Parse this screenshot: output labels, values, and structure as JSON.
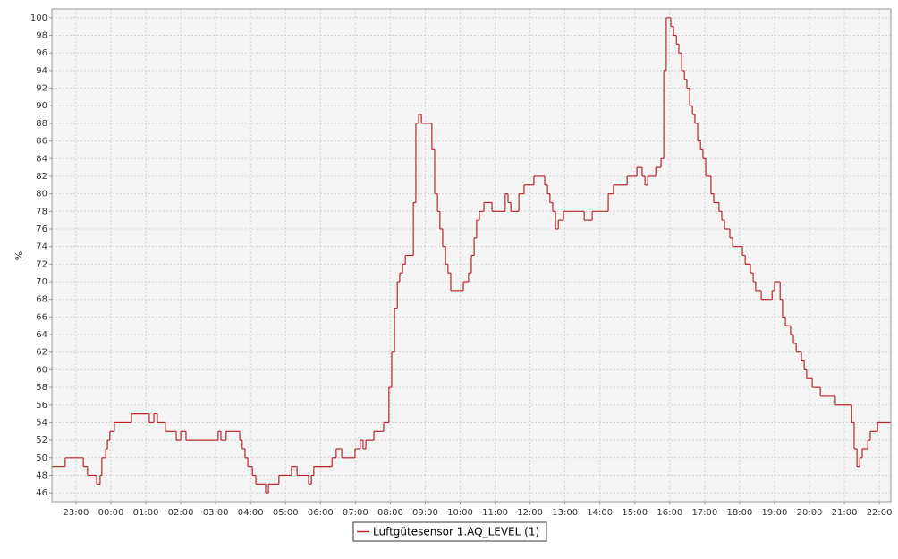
{
  "chart_data": {
    "type": "line",
    "step": "post",
    "y_label": "%",
    "grid": true,
    "xlim": [
      -1.69,
      22.33
    ],
    "ylim": [
      45,
      101
    ],
    "xticks": [
      {
        "value": -1,
        "label": "23:00"
      },
      {
        "value": 0,
        "label": "00:00"
      },
      {
        "value": 1,
        "label": "01:00"
      },
      {
        "value": 2,
        "label": "02:00"
      },
      {
        "value": 3,
        "label": "03:00"
      },
      {
        "value": 4,
        "label": "04:00"
      },
      {
        "value": 5,
        "label": "05:00"
      },
      {
        "value": 6,
        "label": "06:00"
      },
      {
        "value": 7,
        "label": "07:00"
      },
      {
        "value": 8,
        "label": "08:00"
      },
      {
        "value": 9,
        "label": "09:00"
      },
      {
        "value": 10,
        "label": "10:00"
      },
      {
        "value": 11,
        "label": "11:00"
      },
      {
        "value": 12,
        "label": "12:00"
      },
      {
        "value": 13,
        "label": "13:00"
      },
      {
        "value": 14,
        "label": "14:00"
      },
      {
        "value": 15,
        "label": "15:00"
      },
      {
        "value": 16,
        "label": "16:00"
      },
      {
        "value": 17,
        "label": "17:00"
      },
      {
        "value": 18,
        "label": "18:00"
      },
      {
        "value": 19,
        "label": "19:00"
      },
      {
        "value": 20,
        "label": "20:00"
      },
      {
        "value": 21,
        "label": "21:00"
      },
      {
        "value": 22,
        "label": "22:00"
      }
    ],
    "yticks": [
      46,
      48,
      50,
      52,
      54,
      56,
      58,
      60,
      62,
      64,
      66,
      68,
      70,
      72,
      74,
      76,
      78,
      80,
      82,
      84,
      86,
      88,
      90,
      92,
      94,
      96,
      98,
      100
    ],
    "x": [
      -1.69,
      -1.31,
      -0.79,
      -0.67,
      -0.41,
      -0.31,
      -0.26,
      -0.15,
      -0.1,
      -0.03,
      0.1,
      0.59,
      1.1,
      1.23,
      1.33,
      1.56,
      1.87,
      2.0,
      2.15,
      3.07,
      3.15,
      3.3,
      3.69,
      3.76,
      3.84,
      3.92,
      4.05,
      4.15,
      4.43,
      4.51,
      4.81,
      5.17,
      5.33,
      5.66,
      5.74,
      5.81,
      6.33,
      6.45,
      6.61,
      6.99,
      7.14,
      7.22,
      7.3,
      7.53,
      7.81,
      7.96,
      8.04,
      8.12,
      8.2,
      8.27,
      8.35,
      8.43,
      8.66,
      8.73,
      8.81,
      8.89,
      9.19,
      9.27,
      9.35,
      9.42,
      9.5,
      9.58,
      9.65,
      9.73,
      10.09,
      10.24,
      10.32,
      10.4,
      10.47,
      10.55,
      10.68,
      10.91,
      11.29,
      11.37,
      11.45,
      11.68,
      11.83,
      12.11,
      12.42,
      12.5,
      12.57,
      12.65,
      12.73,
      12.81,
      12.96,
      13.55,
      13.78,
      14.24,
      14.39,
      14.78,
      15.06,
      15.21,
      15.29,
      15.37,
      15.6,
      15.75,
      15.83,
      15.9,
      16.03,
      16.11,
      16.19,
      16.26,
      16.34,
      16.42,
      16.49,
      16.57,
      16.65,
      16.72,
      16.8,
      16.88,
      16.95,
      17.03,
      17.18,
      17.26,
      17.41,
      17.49,
      17.57,
      17.72,
      17.8,
      18.08,
      18.16,
      18.31,
      18.39,
      18.46,
      18.62,
      18.93,
      19.0,
      19.16,
      19.23,
      19.31,
      19.46,
      19.54,
      19.62,
      19.77,
      19.85,
      19.92,
      20.08,
      20.31,
      20.74,
      21.21,
      21.28,
      21.36,
      21.44,
      21.51,
      21.67,
      21.74,
      21.95,
      22.33
    ],
    "series": [
      {
        "name": "Luftgütesensor 1.AQ_LEVEL (1)",
        "color": "#b8262b",
        "values": [
          49,
          50,
          49,
          48,
          47,
          48,
          50,
          51,
          52,
          53,
          54,
          55,
          54,
          55,
          54,
          53,
          52,
          53,
          52,
          53,
          52,
          53,
          52,
          51,
          50,
          49,
          48,
          47,
          46,
          47,
          48,
          49,
          48,
          47,
          48,
          49,
          50,
          51,
          50,
          51,
          52,
          51,
          52,
          53,
          54,
          58,
          62,
          67,
          70,
          71,
          72,
          73,
          79,
          88,
          89,
          88,
          85,
          80,
          78,
          76,
          74,
          72,
          71,
          69,
          70,
          71,
          73,
          75,
          77,
          78,
          79,
          78,
          80,
          79,
          78,
          80,
          81,
          82,
          81,
          80,
          79,
          78,
          76,
          77,
          78,
          77,
          78,
          80,
          81,
          82,
          83,
          82,
          81,
          82,
          83,
          84,
          94,
          100,
          99,
          98,
          97,
          96,
          94,
          93,
          92,
          90,
          89,
          88,
          86,
          85,
          84,
          82,
          80,
          79,
          78,
          77,
          76,
          75,
          74,
          73,
          72,
          71,
          70,
          69,
          68,
          69,
          70,
          68,
          66,
          65,
          64,
          63,
          62,
          61,
          60,
          59,
          58,
          57,
          56,
          54,
          51,
          49,
          50,
          51,
          52,
          53,
          54,
          54
        ]
      }
    ]
  }
}
